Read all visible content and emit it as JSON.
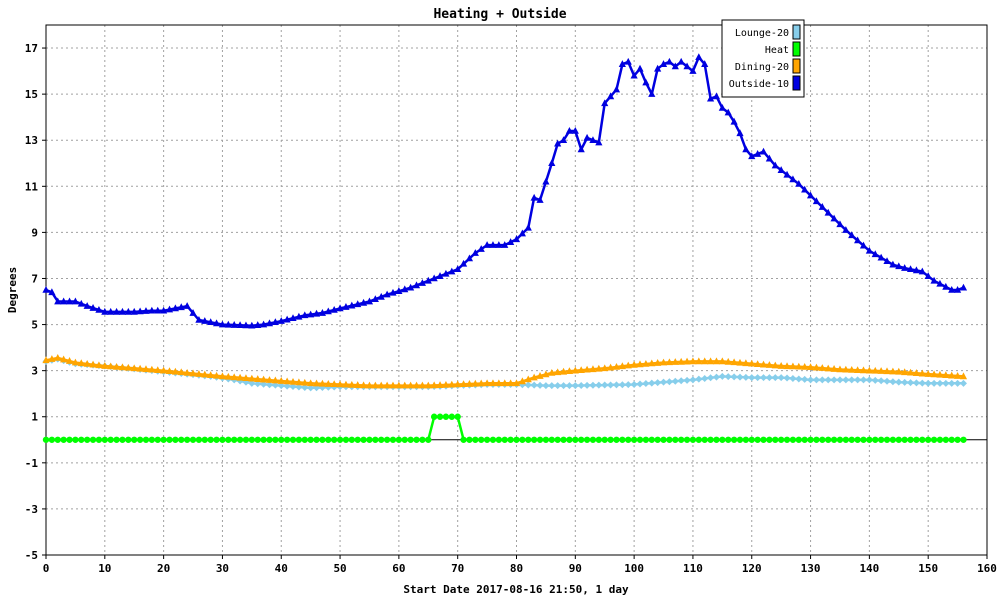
{
  "chart_data": {
    "type": "line",
    "title": "Heating + Outside",
    "xlabel": "Start Date 2017-08-16 21:50, 1 day",
    "ylabel": "Degrees",
    "xlim": [
      0,
      160
    ],
    "ylim": [
      -5,
      18
    ],
    "xticks": [
      0,
      10,
      20,
      30,
      40,
      50,
      60,
      70,
      80,
      90,
      100,
      110,
      120,
      130,
      140,
      150,
      160
    ],
    "yticks": [
      -5,
      -3,
      -1,
      1,
      3,
      5,
      7,
      9,
      11,
      13,
      15,
      17
    ],
    "grid": true,
    "legend": "top-right",
    "series": [
      {
        "name": "Lounge-20",
        "color": "#87ceeb",
        "marker": "diamond",
        "keypoints": [
          [
            0,
            3.4
          ],
          [
            2,
            3.5
          ],
          [
            5,
            3.3
          ],
          [
            10,
            3.2
          ],
          [
            20,
            2.95
          ],
          [
            28,
            2.75
          ],
          [
            32,
            2.6
          ],
          [
            35,
            2.45
          ],
          [
            40,
            2.35
          ],
          [
            45,
            2.25
          ],
          [
            50,
            2.3
          ],
          [
            55,
            2.3
          ],
          [
            60,
            2.3
          ],
          [
            65,
            2.3
          ],
          [
            70,
            2.35
          ],
          [
            75,
            2.4
          ],
          [
            80,
            2.4
          ],
          [
            85,
            2.35
          ],
          [
            90,
            2.35
          ],
          [
            100,
            2.4
          ],
          [
            105,
            2.5
          ],
          [
            110,
            2.6
          ],
          [
            115,
            2.75
          ],
          [
            120,
            2.7
          ],
          [
            125,
            2.7
          ],
          [
            130,
            2.6
          ],
          [
            135,
            2.6
          ],
          [
            140,
            2.6
          ],
          [
            145,
            2.5
          ],
          [
            150,
            2.45
          ],
          [
            156,
            2.45
          ]
        ]
      },
      {
        "name": "Heat",
        "color": "#00ff00",
        "marker": "circle",
        "keypoints": [
          [
            0,
            0
          ],
          [
            65,
            0
          ],
          [
            66,
            1
          ],
          [
            70,
            1
          ],
          [
            71,
            0
          ],
          [
            156,
            0
          ]
        ]
      },
      {
        "name": "Dining-20",
        "color": "#ffa500",
        "marker": "triangle",
        "keypoints": [
          [
            0,
            3.45
          ],
          [
            2,
            3.55
          ],
          [
            5,
            3.35
          ],
          [
            10,
            3.2
          ],
          [
            20,
            3.0
          ],
          [
            30,
            2.75
          ],
          [
            40,
            2.55
          ],
          [
            45,
            2.45
          ],
          [
            50,
            2.4
          ],
          [
            55,
            2.35
          ],
          [
            60,
            2.35
          ],
          [
            65,
            2.35
          ],
          [
            70,
            2.4
          ],
          [
            75,
            2.45
          ],
          [
            80,
            2.45
          ],
          [
            83,
            2.7
          ],
          [
            86,
            2.9
          ],
          [
            90,
            3.0
          ],
          [
            95,
            3.1
          ],
          [
            100,
            3.25
          ],
          [
            105,
            3.35
          ],
          [
            110,
            3.4
          ],
          [
            115,
            3.4
          ],
          [
            120,
            3.3
          ],
          [
            125,
            3.2
          ],
          [
            130,
            3.15
          ],
          [
            135,
            3.05
          ],
          [
            140,
            3.0
          ],
          [
            145,
            2.95
          ],
          [
            150,
            2.85
          ],
          [
            156,
            2.75
          ]
        ]
      },
      {
        "name": "Outside-10",
        "color": "#0000e0",
        "marker": "triangle",
        "keypoints": [
          [
            0,
            6.5
          ],
          [
            1,
            6.4
          ],
          [
            2,
            6.0
          ],
          [
            5,
            6.0
          ],
          [
            7,
            5.8
          ],
          [
            10,
            5.55
          ],
          [
            15,
            5.55
          ],
          [
            18,
            5.6
          ],
          [
            20,
            5.6
          ],
          [
            22,
            5.7
          ],
          [
            24,
            5.8
          ],
          [
            25,
            5.5
          ],
          [
            26,
            5.2
          ],
          [
            30,
            5.0
          ],
          [
            35,
            4.95
          ],
          [
            37,
            5.0
          ],
          [
            40,
            5.15
          ],
          [
            44,
            5.4
          ],
          [
            47,
            5.5
          ],
          [
            50,
            5.7
          ],
          [
            55,
            6.0
          ],
          [
            58,
            6.3
          ],
          [
            62,
            6.6
          ],
          [
            66,
            7.0
          ],
          [
            70,
            7.4
          ],
          [
            73,
            8.1
          ],
          [
            75,
            8.45
          ],
          [
            78,
            8.45
          ],
          [
            80,
            8.7
          ],
          [
            82,
            9.2
          ],
          [
            83,
            10.5
          ],
          [
            84,
            10.4
          ],
          [
            85,
            11.2
          ],
          [
            86,
            12.0
          ],
          [
            87,
            12.85
          ],
          [
            88,
            13.0
          ],
          [
            89,
            13.4
          ],
          [
            90,
            13.4
          ],
          [
            91,
            12.6
          ],
          [
            92,
            13.1
          ],
          [
            93,
            13.0
          ],
          [
            94,
            12.9
          ],
          [
            95,
            14.6
          ],
          [
            96,
            14.9
          ],
          [
            97,
            15.2
          ],
          [
            98,
            16.3
          ],
          [
            99,
            16.4
          ],
          [
            100,
            15.8
          ],
          [
            101,
            16.1
          ],
          [
            102,
            15.5
          ],
          [
            103,
            15.0
          ],
          [
            104,
            16.1
          ],
          [
            105,
            16.3
          ],
          [
            106,
            16.4
          ],
          [
            107,
            16.2
          ],
          [
            108,
            16.4
          ],
          [
            109,
            16.2
          ],
          [
            110,
            16.0
          ],
          [
            111,
            16.6
          ],
          [
            112,
            16.3
          ],
          [
            113,
            14.8
          ],
          [
            114,
            14.9
          ],
          [
            115,
            14.4
          ],
          [
            116,
            14.2
          ],
          [
            117,
            13.8
          ],
          [
            118,
            13.3
          ],
          [
            119,
            12.6
          ],
          [
            120,
            12.3
          ],
          [
            121,
            12.4
          ],
          [
            122,
            12.5
          ],
          [
            123,
            12.2
          ],
          [
            124,
            11.9
          ],
          [
            128,
            11.1
          ],
          [
            132,
            10.1
          ],
          [
            136,
            9.1
          ],
          [
            140,
            8.2
          ],
          [
            144,
            7.6
          ],
          [
            146,
            7.45
          ],
          [
            149,
            7.3
          ],
          [
            151,
            6.9
          ],
          [
            154,
            6.5
          ],
          [
            155,
            6.5
          ],
          [
            156,
            6.6
          ]
        ]
      }
    ]
  }
}
